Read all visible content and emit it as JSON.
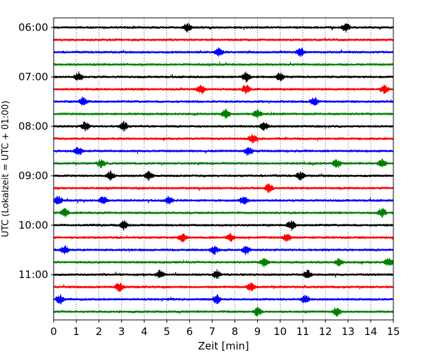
{
  "chart_data": {
    "type": "line",
    "title": "",
    "xlabel": "Zeit  [min]",
    "ylabel": "UTC (Lokalzeit = UTC + 01:00)",
    "xlim": [
      0,
      15
    ],
    "x_ticks": [
      "0",
      "1",
      "2",
      "3",
      "4",
      "5",
      "6",
      "7",
      "8",
      "9",
      "10",
      "11",
      "12",
      "13",
      "14",
      "15"
    ],
    "y_ticks": [
      "06:00",
      "07:00",
      "08:00",
      "09:00",
      "10:00",
      "11:00"
    ],
    "grid": "vertical dotted at each minute",
    "trace_interval_minutes": 15,
    "start_time_utc": "06:00",
    "trace_colors": [
      "#000000",
      "#ff0000",
      "#0000ff",
      "#008000"
    ],
    "traces": [
      {
        "time": "06:00",
        "color": "#000000",
        "events_min": [
          5.9,
          12.9
        ]
      },
      {
        "time": "06:15",
        "color": "#ff0000",
        "events_min": []
      },
      {
        "time": "06:30",
        "color": "#0000ff",
        "events_min": [
          7.3,
          10.9
        ]
      },
      {
        "time": "06:45",
        "color": "#008000",
        "events_min": []
      },
      {
        "time": "07:00",
        "color": "#000000",
        "events_min": [
          1.1,
          8.5,
          10.0
        ]
      },
      {
        "time": "07:15",
        "color": "#ff0000",
        "events_min": [
          6.5,
          8.5,
          14.6
        ]
      },
      {
        "time": "07:30",
        "color": "#0000ff",
        "events_min": [
          1.3,
          11.5
        ]
      },
      {
        "time": "07:45",
        "color": "#008000",
        "events_min": [
          7.6,
          9.0
        ]
      },
      {
        "time": "08:00",
        "color": "#000000",
        "events_min": [
          1.4,
          3.1,
          9.3
        ]
      },
      {
        "time": "08:15",
        "color": "#ff0000",
        "events_min": [
          8.8
        ]
      },
      {
        "time": "08:30",
        "color": "#0000ff",
        "events_min": [
          1.1,
          8.6
        ]
      },
      {
        "time": "08:45",
        "color": "#008000",
        "events_min": [
          2.1,
          12.5,
          14.5
        ]
      },
      {
        "time": "09:00",
        "color": "#000000",
        "events_min": [
          2.5,
          4.2,
          10.9
        ]
      },
      {
        "time": "09:15",
        "color": "#ff0000",
        "events_min": [
          9.5
        ]
      },
      {
        "time": "09:30",
        "color": "#0000ff",
        "events_min": [
          0.2,
          2.2,
          5.1,
          8.4
        ]
      },
      {
        "time": "09:45",
        "color": "#008000",
        "events_min": [
          0.5,
          14.5
        ]
      },
      {
        "time": "10:00",
        "color": "#000000",
        "events_min": [
          3.1,
          10.5
        ]
      },
      {
        "time": "10:15",
        "color": "#ff0000",
        "events_min": [
          5.7,
          7.8,
          10.3
        ]
      },
      {
        "time": "10:30",
        "color": "#0000ff",
        "events_min": [
          0.5,
          7.1,
          8.5
        ]
      },
      {
        "time": "10:45",
        "color": "#008000",
        "events_min": [
          9.3,
          12.6,
          14.8
        ]
      },
      {
        "time": "11:00",
        "color": "#000000",
        "events_min": [
          4.7,
          7.2,
          11.2
        ]
      },
      {
        "time": "11:15",
        "color": "#ff0000",
        "events_min": [
          2.9,
          8.7
        ]
      },
      {
        "time": "11:30",
        "color": "#0000ff",
        "events_min": [
          0.3,
          7.2,
          11.1
        ]
      },
      {
        "time": "11:45",
        "color": "#008000",
        "events_min": [
          9.0,
          12.5
        ]
      }
    ]
  }
}
